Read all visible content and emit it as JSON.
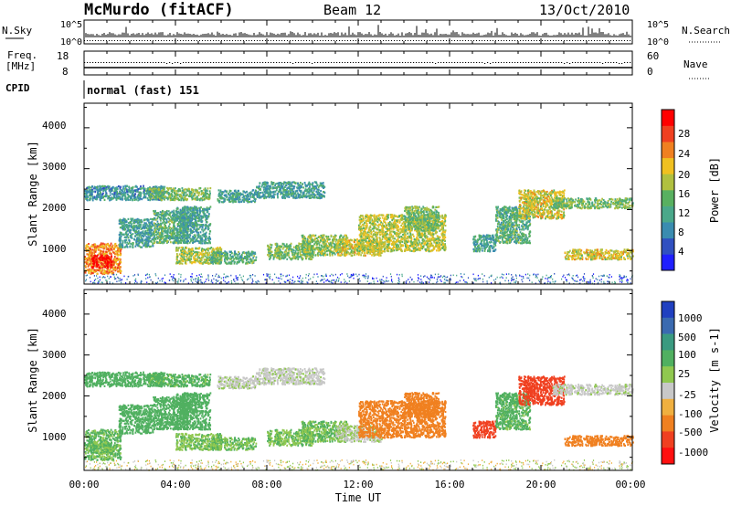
{
  "header": {
    "station": "McMurdo (fitACF)",
    "beam": "Beam 12",
    "date": "13/Oct/2010"
  },
  "status_panels": {
    "nsky": {
      "label": "N.Sky",
      "ticks": [
        "10^5",
        "10^0"
      ],
      "right_label": "N.Search",
      "right_ticks": [
        "10^5",
        "10^0"
      ]
    },
    "freq": {
      "label_lines": [
        "Freq.",
        "[MHz]"
      ],
      "ticks": [
        "18",
        "8"
      ],
      "right_label": "Nave",
      "right_ticks": [
        "60",
        "0"
      ]
    },
    "cpid": {
      "label": "CPID",
      "value": "normal (fast) 151"
    }
  },
  "time_axis": {
    "ticks": [
      "00:00",
      "04:00",
      "08:00",
      "12:00",
      "16:00",
      "20:00",
      "00:00"
    ],
    "label": "Time UT"
  },
  "panels": {
    "power": {
      "ylabel": "Slant Range [km]",
      "yticks": [
        "1000",
        "2000",
        "3000",
        "4000"
      ],
      "colorbar_label": "Power [dB]",
      "colorbar_ticks": [
        "4",
        "8",
        "12",
        "16",
        "20",
        "24",
        "28"
      ],
      "colors": [
        "#1f1fff",
        "#3050c0",
        "#3a8cb0",
        "#4aa88a",
        "#58b060",
        "#b0c040",
        "#f0c020",
        "#f08020",
        "#f04020",
        "#ff0000"
      ]
    },
    "velocity": {
      "ylabel": "Slant Range [km]",
      "yticks": [
        "1000",
        "2000",
        "3000",
        "4000"
      ],
      "colorbar_label": "Velocity [m s-1]",
      "colorbar_ticks": [
        "1000",
        "500",
        "100",
        "25",
        "-25",
        "-100",
        "-500",
        "-1000"
      ],
      "colors": [
        "#2040c0",
        "#3a6ab0",
        "#3a9a80",
        "#50b060",
        "#90c850",
        "#c8c8c8",
        "#f0b040",
        "#f08020",
        "#f04020",
        "#ff1010"
      ]
    }
  },
  "chart_data": {
    "type": "heatmap",
    "x_range_hours": [
      0,
      24
    ],
    "y_range_km": [
      180,
      4600
    ],
    "grid": false,
    "description_free_note": "",
    "echo_regions": [
      {
        "t0": 0.0,
        "t1": 1.6,
        "r0": 450,
        "r1": 1200,
        "power": 22,
        "vel": 110
      },
      {
        "t0": 0.3,
        "t1": 1.2,
        "r0": 600,
        "r1": 900,
        "power": 28,
        "vel": 100
      },
      {
        "t0": 0.0,
        "t1": 3.5,
        "r0": 2250,
        "r1": 2600,
        "power": 9,
        "vel": 150
      },
      {
        "t0": 1.5,
        "t1": 3.0,
        "r0": 1100,
        "r1": 1800,
        "power": 10,
        "vel": 200
      },
      {
        "t0": 2.8,
        "t1": 5.5,
        "r0": 2250,
        "r1": 2550,
        "power": 14,
        "vel": 120
      },
      {
        "t0": 3.0,
        "t1": 4.5,
        "r0": 1200,
        "r1": 2000,
        "power": 12,
        "vel": 150
      },
      {
        "t0": 4.0,
        "t1": 5.5,
        "r0": 1200,
        "r1": 2100,
        "power": 10,
        "vel": 130
      },
      {
        "t0": 4.0,
        "t1": 6.0,
        "r0": 700,
        "r1": 1100,
        "power": 16,
        "vel": 90
      },
      {
        "t0": 5.5,
        "t1": 7.5,
        "r0": 700,
        "r1": 1000,
        "power": 12,
        "vel": 100
      },
      {
        "t0": 5.8,
        "t1": 7.5,
        "r0": 2200,
        "r1": 2500,
        "power": 10,
        "vel": 10
      },
      {
        "t0": 7.5,
        "t1": 10.5,
        "r0": 2300,
        "r1": 2700,
        "power": 10,
        "vel": 5
      },
      {
        "t0": 8.0,
        "t1": 10.0,
        "r0": 800,
        "r1": 1200,
        "power": 14,
        "vel": 95
      },
      {
        "t0": 9.5,
        "t1": 11.5,
        "r0": 900,
        "r1": 1400,
        "power": 15,
        "vel": 100
      },
      {
        "t0": 11.0,
        "t1": 13.0,
        "r0": 900,
        "r1": 1300,
        "power": 18,
        "vel": 20
      },
      {
        "t0": 12.0,
        "t1": 15.8,
        "r0": 1000,
        "r1": 1900,
        "power": 17,
        "vel": -150
      },
      {
        "t0": 14.0,
        "t1": 15.5,
        "r0": 1500,
        "r1": 2100,
        "power": 14,
        "vel": -200
      },
      {
        "t0": 17.0,
        "t1": 18.0,
        "r0": 1000,
        "r1": 1400,
        "power": 10,
        "vel": -300
      },
      {
        "t0": 18.0,
        "t1": 19.5,
        "r0": 1200,
        "r1": 2100,
        "power": 12,
        "vel": 120
      },
      {
        "t0": 19.0,
        "t1": 21.0,
        "r0": 1800,
        "r1": 2500,
        "power": 18,
        "vel": -300
      },
      {
        "t0": 20.5,
        "t1": 24.0,
        "r0": 2050,
        "r1": 2300,
        "power": 14,
        "vel": 5
      },
      {
        "t0": 21.0,
        "t1": 24.0,
        "r0": 800,
        "r1": 1050,
        "power": 18,
        "vel": -200
      }
    ]
  }
}
